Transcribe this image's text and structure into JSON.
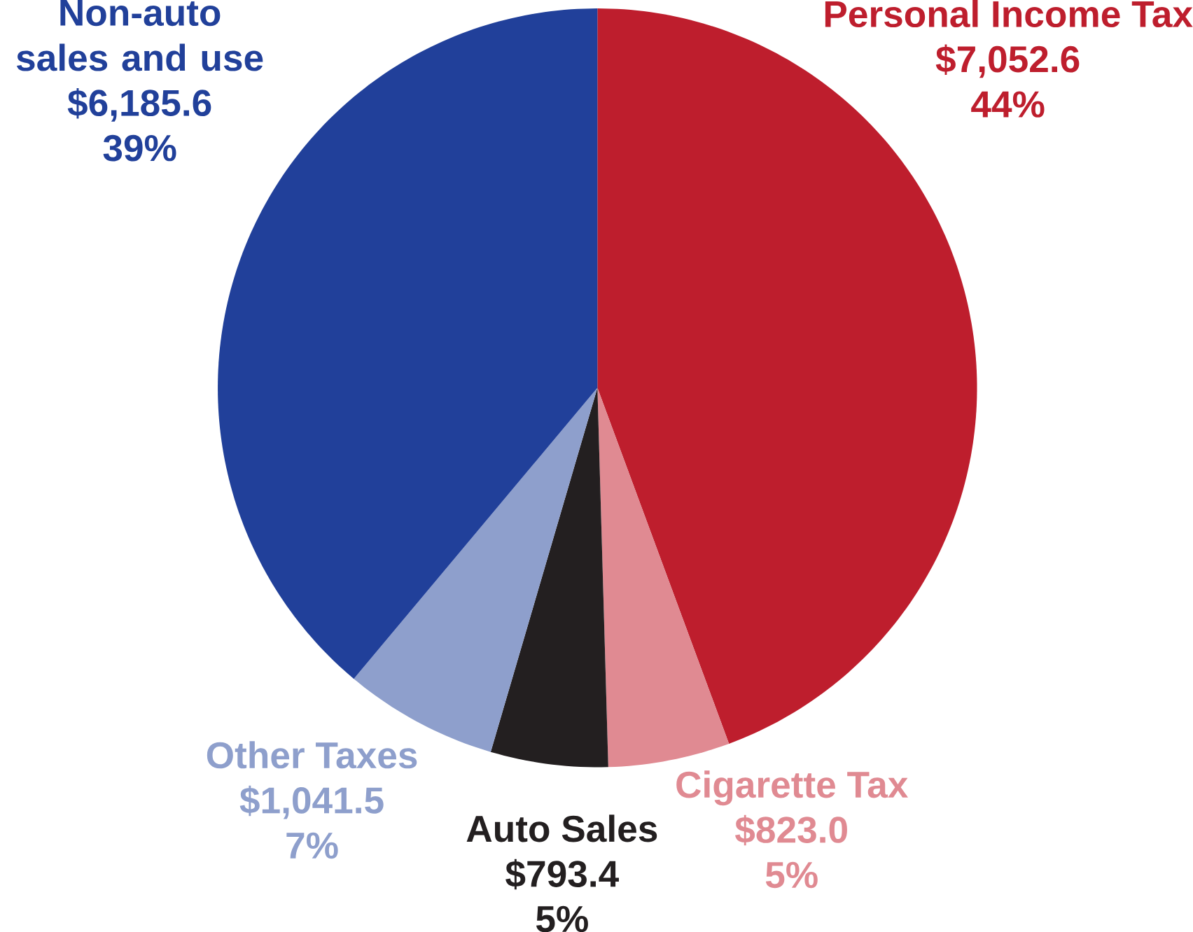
{
  "chart_data": {
    "type": "pie",
    "categories": [
      "Personal Income Tax",
      "Cigarette Tax",
      "Auto Sales",
      "Other Taxes",
      "Non-auto sales and use"
    ],
    "values": [
      7052.6,
      823.0,
      793.4,
      1041.5,
      6185.6
    ],
    "colors": [
      "#be1e2d",
      "#e08a92",
      "#231f20",
      "#8e9fcc",
      "#21409a"
    ],
    "value_labels": [
      "$7,052.6",
      "$823.0",
      "$793.4",
      "$1,041.5",
      "$6,185.6"
    ],
    "annotations": [
      "44%",
      "5%",
      "5%",
      "7%",
      "39%"
    ]
  }
}
